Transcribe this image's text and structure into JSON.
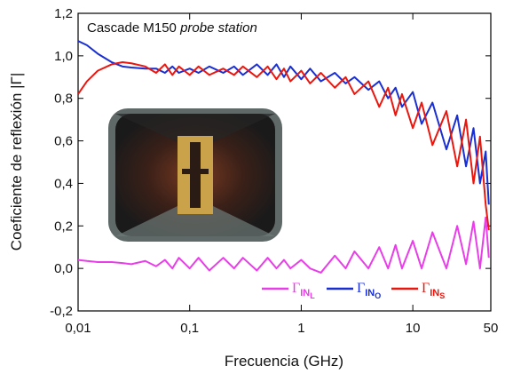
{
  "chart_data": {
    "type": "line",
    "annotation": [
      "Cascade M150",
      "probe station"
    ],
    "xlabel": "Frecuencia (GHz)",
    "ylabel": "Coeficiente de reflexión |Γ|",
    "xscale": "log",
    "legend": "lower right",
    "x": [
      0.01,
      0.012,
      0.015,
      0.02,
      0.025,
      0.03,
      0.04,
      0.05,
      0.06,
      0.07,
      0.08,
      0.1,
      0.12,
      0.15,
      0.2,
      0.25,
      0.3,
      0.4,
      0.5,
      0.6,
      0.7,
      0.8,
      1,
      1.2,
      1.5,
      2,
      2.5,
      3,
      4,
      5,
      6,
      7,
      8,
      10,
      12,
      15,
      20,
      25,
      30,
      35,
      40,
      45,
      48
    ],
    "series": [
      {
        "name": "ΓINL",
        "color": "#e83ee8",
        "values": [
          0.04,
          0.035,
          0.03,
          0.03,
          0.025,
          0.02,
          0.035,
          0.01,
          0.04,
          0.0,
          0.05,
          0.0,
          0.05,
          -0.01,
          0.05,
          0.0,
          0.05,
          -0.01,
          0.05,
          0.0,
          0.04,
          0.0,
          0.04,
          0.0,
          -0.02,
          0.06,
          0.0,
          0.08,
          0.0,
          0.1,
          0.0,
          0.11,
          0.0,
          0.13,
          0.0,
          0.17,
          0.0,
          0.2,
          0.02,
          0.22,
          0.0,
          0.24,
          0.05
        ]
      },
      {
        "name": "ΓINO",
        "color": "#1a2fd0",
        "values": [
          1.07,
          1.05,
          1.01,
          0.97,
          0.95,
          0.945,
          0.94,
          0.94,
          0.92,
          0.95,
          0.92,
          0.94,
          0.92,
          0.95,
          0.92,
          0.95,
          0.91,
          0.96,
          0.91,
          0.96,
          0.9,
          0.95,
          0.89,
          0.94,
          0.88,
          0.92,
          0.87,
          0.9,
          0.84,
          0.88,
          0.8,
          0.85,
          0.76,
          0.83,
          0.68,
          0.78,
          0.56,
          0.72,
          0.48,
          0.66,
          0.4,
          0.55,
          0.3
        ]
      },
      {
        "name": "ΓINS",
        "color": "#e8170f",
        "values": [
          0.82,
          0.88,
          0.93,
          0.96,
          0.97,
          0.965,
          0.95,
          0.92,
          0.96,
          0.91,
          0.95,
          0.91,
          0.95,
          0.91,
          0.94,
          0.91,
          0.95,
          0.9,
          0.95,
          0.89,
          0.94,
          0.88,
          0.93,
          0.87,
          0.92,
          0.85,
          0.9,
          0.82,
          0.88,
          0.76,
          0.85,
          0.72,
          0.82,
          0.66,
          0.78,
          0.58,
          0.74,
          0.48,
          0.7,
          0.4,
          0.62,
          0.3,
          0.18
        ]
      }
    ],
    "xlim": [
      0.01,
      50
    ],
    "xticks": [
      {
        "value": 0.01,
        "label": "0,01"
      },
      {
        "value": 0.1,
        "label": "0,1"
      },
      1,
      10,
      50
    ],
    "ylim": [
      -0.2,
      1.2
    ],
    "yticks": [
      {
        "value": -0.2,
        "label": "-0,2"
      },
      {
        "value": 0,
        "label": "0,0"
      },
      {
        "value": 0.2,
        "label": "0,2"
      },
      {
        "value": 0.4,
        "label": "0,4"
      },
      {
        "value": 0.6,
        "label": "0,6"
      },
      {
        "value": 0.8,
        "label": "0,8"
      },
      {
        "value": 1,
        "label": "1,0"
      },
      {
        "value": 1.2,
        "label": "1,2"
      }
    ]
  }
}
